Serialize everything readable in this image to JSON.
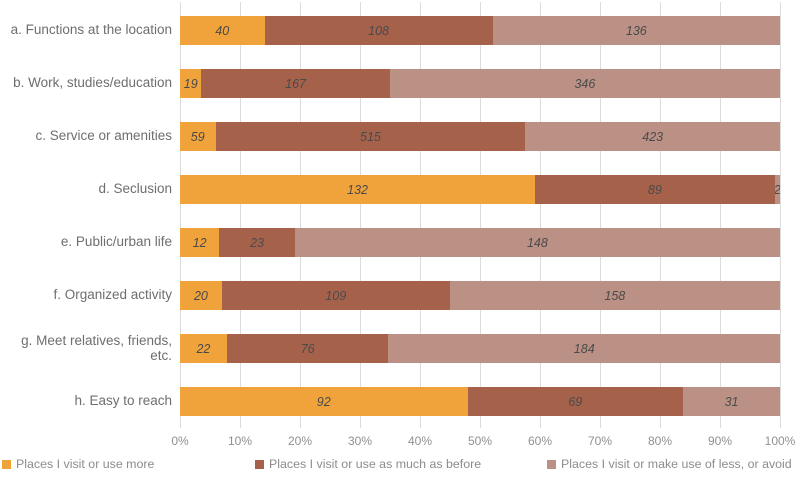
{
  "chart_data": {
    "type": "bar",
    "orientation": "horizontal",
    "stacked": true,
    "stacking": "percent",
    "title": "",
    "categories": [
      "a. Functions at the location",
      "b. Work, studies/education",
      "c. Service or amenities",
      "d. Seclusion",
      "e. Public/urban life",
      "f. Organized activity",
      "g. Meet relatives, friends, etc.",
      "h. Easy to reach"
    ],
    "series": [
      {
        "name": "Places I visit or use more",
        "color": "#F0A33B",
        "values": [
          40,
          19,
          59,
          132,
          12,
          20,
          22,
          92
        ]
      },
      {
        "name": "Places I visit or use as much as before",
        "color": "#A6614B",
        "values": [
          108,
          167,
          515,
          89,
          23,
          109,
          76,
          69
        ]
      },
      {
        "name": "Places I visit or make use of less, or avoid",
        "color": "#BB9186",
        "values": [
          136,
          346,
          423,
          2,
          148,
          158,
          184,
          31
        ]
      }
    ],
    "x_ticks": [
      "0%",
      "10%",
      "20%",
      "30%",
      "40%",
      "50%",
      "60%",
      "70%",
      "80%",
      "90%",
      "100%"
    ],
    "xlim": [
      0,
      100
    ],
    "grid": "vertical",
    "legend_position": "bottom",
    "value_labels": "inside-center",
    "colors": {
      "background": "#FFFFFF",
      "gridline": "#DCDCDC",
      "category_label": "#6E6E6E",
      "value_label": "#4A4A4A",
      "tick_label": "#909090",
      "legend_label": "#8C8C8C"
    }
  }
}
